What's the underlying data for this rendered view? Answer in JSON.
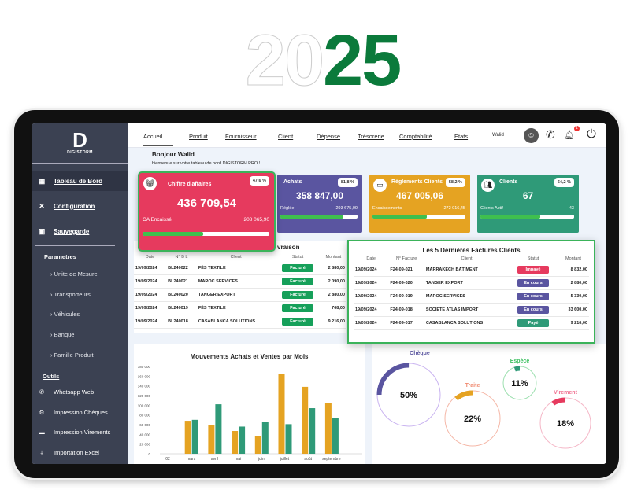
{
  "banner": {
    "year_a": "20",
    "year_b": "25"
  },
  "brand": {
    "name": "DIGISTORM",
    "glyph": "D"
  },
  "sidebar": {
    "main": [
      {
        "icon": "dashboard-icon",
        "glyph": "▦",
        "label": "Tableau de Bord",
        "active": true
      },
      {
        "icon": "tools-icon",
        "glyph": "✕",
        "label": "Configuration"
      },
      {
        "icon": "save-icon",
        "glyph": "▣",
        "label": "Sauvegarde"
      }
    ],
    "params_title": "Parametres",
    "params": [
      "Unite de Mesure",
      "Transporteurs",
      "Véhicules",
      "Banque",
      "Famille Produit"
    ],
    "tools_title": "Outils",
    "tools": [
      {
        "icon": "whatsapp-icon",
        "glyph": "✆",
        "label": "Whatsapp Web"
      },
      {
        "icon": "cheque-print-icon",
        "glyph": "⚙",
        "label": "Impression Chèques"
      },
      {
        "icon": "printer-icon",
        "glyph": "▬",
        "label": "Impression Virements"
      },
      {
        "icon": "download-icon",
        "glyph": "⤓",
        "label": "Importation Excel"
      }
    ]
  },
  "nav": {
    "items": [
      "Accueil",
      "Produit",
      "Fournisseur",
      "Client",
      "Dépense",
      "Trésorerie",
      "Comptabilité",
      "Etats"
    ],
    "user": "Walid",
    "notifications": "1"
  },
  "greeting": {
    "title": "Bonjour Walid",
    "subtitle": "bienvenue sur votre tableau de bord DIGISTORM PRO !"
  },
  "cards": [
    {
      "title": "Chiffre d'affaires",
      "badge": "47,6 %",
      "value": "436 709,54",
      "sub_label": "CA Encaissé",
      "sub_value": "208 065,90",
      "progress": 47.6,
      "color": "#e63a5e"
    },
    {
      "title": "Achats",
      "badge": "81,8 %",
      "value": "358 847,00",
      "sub_label": "Réglée",
      "sub_value": "293 675,00",
      "progress": 81.8,
      "color": "#5a55a0"
    },
    {
      "title": "Réglements Clients",
      "badge": "58,2 %",
      "value": "467 005,06",
      "sub_label": "Encaissements",
      "sub_value": "272 016,45",
      "progress": 58.2,
      "color": "#e5a322"
    },
    {
      "title": "Clients",
      "badge": "64,2 %",
      "value": "67",
      "sub_label": "Clients Actif",
      "sub_value": "43",
      "progress": 64.2,
      "color": "#2f9a78"
    }
  ],
  "bl": {
    "title": "vraison",
    "headers": [
      "Date",
      "N° B L",
      "Client",
      "Statut",
      "Montant"
    ],
    "rows": [
      [
        "19/09/2024",
        "BL240022",
        "FÈS TEXTILE",
        "Facturé",
        "2 880,00"
      ],
      [
        "19/09/2024",
        "BL240021",
        "MAROC SERVICES",
        "Facturé",
        "2 090,00"
      ],
      [
        "19/09/2024",
        "BL240020",
        "TANGER EXPORT",
        "Facturé",
        "2 880,00"
      ],
      [
        "19/09/2024",
        "BL240019",
        "FÈS TEXTILE",
        "Facturé",
        "768,00"
      ],
      [
        "19/09/2024",
        "BL240018",
        "CASABLANCA SOLUTIONS",
        "Facturé",
        "9 216,00"
      ]
    ]
  },
  "factures": {
    "title": "Les 5 Dernières Factures Clients",
    "headers": [
      "Date",
      "N° Facture",
      "Client",
      "Statut",
      "Montant"
    ],
    "rows": [
      [
        "19/09/2024",
        "F24-09-021",
        "MARRAKECH BÂTIMENT",
        "Impayé",
        "8 832,00"
      ],
      [
        "19/09/2024",
        "F24-09-020",
        "TANGER EXPORT",
        "En cours",
        "2 880,00"
      ],
      [
        "19/09/2024",
        "F24-09-019",
        "MAROC SERVICES",
        "En cours",
        "5 330,00"
      ],
      [
        "19/09/2024",
        "F24-09-018",
        "SOCIÉTÉ ATLAS IMPORT",
        "En cours",
        "33 600,00"
      ],
      [
        "19/09/2024",
        "F24-09-017",
        "CASABLANCA SOLUTIONS",
        "Payé",
        "9 216,00"
      ]
    ]
  },
  "status_colors": {
    "Facturé": "#16a05a",
    "Impayé": "#e63a5e",
    "En cours": "#5a55a0",
    "Payé": "#2f9a78"
  },
  "chart_data": {
    "type": "bar",
    "title": "Mouvements Achats et Ventes par Mois",
    "categories": [
      "02",
      "mars",
      "avril",
      "mai",
      "juin",
      "juillet",
      "août",
      "septembre"
    ],
    "series": [
      {
        "values": [
          0,
          68000,
          59000,
          47000,
          37000,
          164000,
          138000,
          105000
        ],
        "color": "#e5a322"
      },
      {
        "values": [
          0,
          70000,
          102000,
          56000,
          65000,
          61000,
          94000,
          74000
        ],
        "color": "#2f9a78"
      }
    ],
    "ylim": [
      0,
      180000
    ],
    "yticks": [
      "0",
      "20 000",
      "40 000",
      "60 000",
      "80 000",
      "100 000",
      "120 000",
      "140 000",
      "160 000",
      "180 000"
    ],
    "grid": false
  },
  "payments": [
    {
      "label": "Chèque",
      "pct": 50,
      "text": "50%",
      "color": "#5a55a0",
      "ring": "#c9b3f0"
    },
    {
      "label": "Traite",
      "pct": 22,
      "text": "22%",
      "color": "#e5a322",
      "ring": "#f5b8a8",
      "title_color": "#f08a70"
    },
    {
      "label": "Espèce",
      "pct": 11,
      "text": "11%",
      "color": "#2f9a78",
      "ring": "#9ee0b0",
      "title_color": "#3cc060"
    },
    {
      "label": "Virement",
      "pct": 18,
      "text": "18%",
      "color": "#e63a5e",
      "ring": "#f5b8c8",
      "title_color": "#f07090"
    }
  ]
}
